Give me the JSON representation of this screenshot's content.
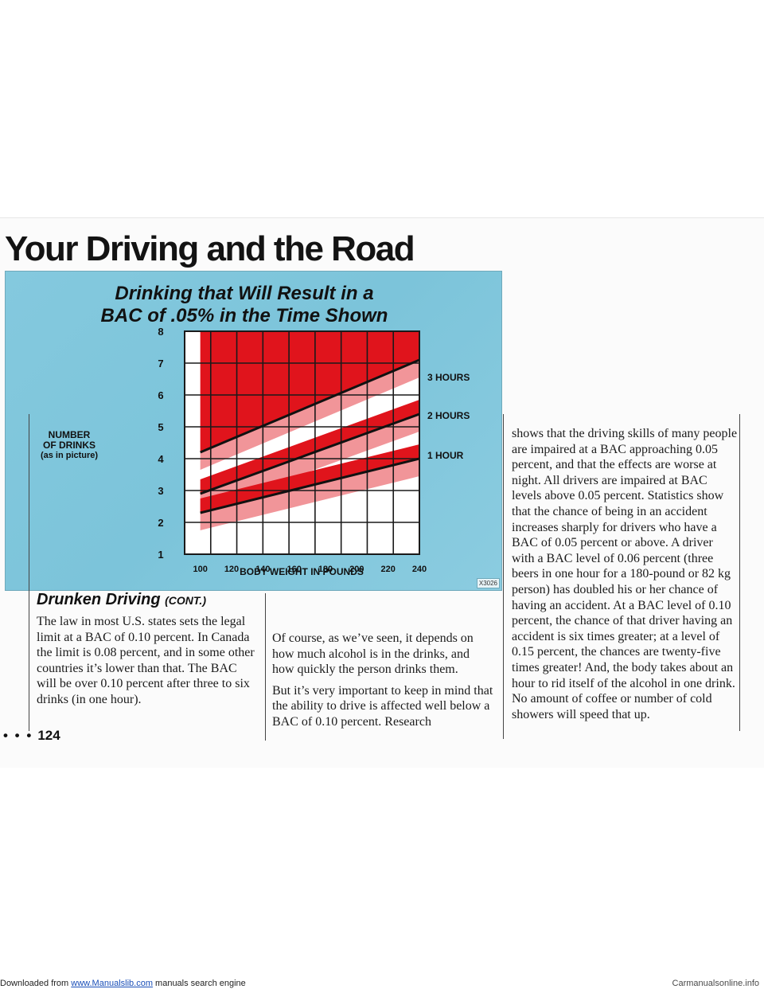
{
  "page": {
    "title": "Your Driving and the Road",
    "page_number": "124",
    "page_dots": "• • •"
  },
  "chart": {
    "title_line1": "Drinking that Will Result in a",
    "title_line2": "BAC of .05% in the Time Shown",
    "ylabel_line1": "NUMBER",
    "ylabel_line2": "OF DRINKS",
    "ylabel_line3": "(as in picture)",
    "xlabel": "BODY WEIGHT IN POUNDS",
    "image_code": "X3026"
  },
  "chart_data": {
    "type": "line",
    "title": "Drinking that Will Result in a BAC of .05% in the Time Shown",
    "xlabel": "BODY WEIGHT IN POUNDS",
    "ylabel": "NUMBER OF DRINKS (as in picture)",
    "x_ticks": [
      100,
      120,
      140,
      160,
      180,
      200,
      220,
      240
    ],
    "y_ticks": [
      1,
      2,
      3,
      4,
      5,
      6,
      7,
      8
    ],
    "xlim": [
      90,
      240
    ],
    "ylim": [
      1,
      8
    ],
    "grid": true,
    "series": [
      {
        "name": "3 HOURS",
        "x": [
          100,
          240
        ],
        "y": [
          4.2,
          7.1
        ]
      },
      {
        "name": "2 HOURS",
        "x": [
          100,
          240
        ],
        "y": [
          2.9,
          5.4
        ]
      },
      {
        "name": "1 HOUR",
        "x": [
          100,
          240
        ],
        "y": [
          2.3,
          4.0
        ]
      }
    ],
    "colors": {
      "fill": "#e0141c",
      "line": "#111111",
      "background": "#84c9de"
    }
  },
  "section": {
    "heading": "Drunken Driving",
    "heading_suffix": "(CONT.)"
  },
  "columns": {
    "col1": [
      "The law in most U.S. states sets the legal limit at a BAC of 0.10 percent. In Canada the limit is 0.08 percent, and in some other countries it’s lower than that. The BAC will be over 0.10 percent after three to six drinks (in one hour)."
    ],
    "col2": [
      "Of course, as we’ve seen, it depends on how much alcohol is in the drinks, and how quickly the person drinks them.",
      "But it’s very important to keep in mind that the ability to drive is affected well below a BAC of 0.10 percent. Research"
    ],
    "col3": [
      "shows that the driving skills of many people are impaired at a BAC approaching 0.05 percent, and that the effects are worse at night. All drivers are impaired at BAC levels above 0.05 percent. Statistics show that the chance of being in an accident increases sharply for drivers who have a BAC of 0.05 percent or above. A driver with a BAC level of 0.06 percent (three beers in one hour for a 180-pound or 82 kg person) has doubled his or her chance of having an accident. At a BAC level of 0.10 percent, the chance of that driver having an accident is six times greater; at a level of 0.15 percent, the chances are twenty-five times greater! And, the body takes about an hour to rid itself of the alcohol in one drink. No amount of coffee or number of cold showers will speed that up."
    ]
  },
  "footer": {
    "prefix": "Downloaded from ",
    "link": "www.Manualslib.com",
    "suffix": " manuals search engine",
    "watermark": "Carmanualsonline.info"
  }
}
